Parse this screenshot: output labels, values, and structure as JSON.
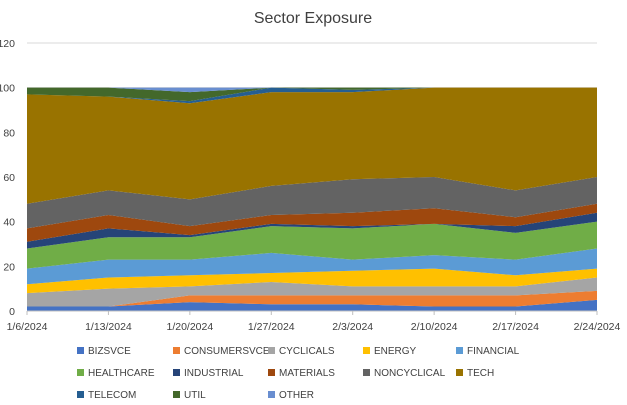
{
  "chart_data": {
    "type": "area",
    "stacked": true,
    "title": "Sector Exposure",
    "xlabel": "",
    "ylabel": "",
    "ylim": [
      0,
      120
    ],
    "yticks": [
      0,
      20,
      40,
      60,
      80,
      100,
      120
    ],
    "grid": true,
    "legend_position": "bottom",
    "x": [
      "1/6/2024",
      "1/13/2024",
      "1/20/2024",
      "1/27/2024",
      "2/3/2024",
      "2/10/2024",
      "2/17/2024",
      "2/24/2024"
    ],
    "series": [
      {
        "name": "BIZSVCE",
        "color": "#4472c4",
        "values": [
          2,
          2,
          4,
          3,
          3,
          2,
          2,
          5
        ]
      },
      {
        "name": "CONSUMERSVCE",
        "color": "#ed7d31",
        "values": [
          0,
          0,
          3,
          4,
          4,
          5,
          5,
          4
        ]
      },
      {
        "name": "CYCLICALS",
        "color": "#a5a5a5",
        "values": [
          6,
          8,
          4,
          6,
          4,
          4,
          4,
          6
        ]
      },
      {
        "name": "ENERGY",
        "color": "#ffc000",
        "values": [
          4,
          5,
          5,
          4,
          7,
          8,
          5,
          4
        ]
      },
      {
        "name": "FINANCIAL",
        "color": "#5b9bd5",
        "values": [
          7,
          8,
          7,
          9,
          5,
          6,
          7,
          9
        ]
      },
      {
        "name": "HEALTHCARE",
        "color": "#70ad47",
        "values": [
          9,
          10,
          10,
          12,
          14,
          14,
          12,
          12
        ]
      },
      {
        "name": "INDUSTRIAL",
        "color": "#264478",
        "values": [
          3,
          4,
          1,
          1,
          1,
          0,
          3,
          4
        ]
      },
      {
        "name": "MATERIALS",
        "color": "#9e480e",
        "values": [
          6,
          6,
          4,
          4,
          6,
          7,
          4,
          4
        ]
      },
      {
        "name": "NONCYCLICAL",
        "color": "#636363",
        "values": [
          11,
          11,
          12,
          13,
          15,
          14,
          12,
          12
        ]
      },
      {
        "name": "TECH",
        "color": "#997300",
        "values": [
          49,
          42,
          43,
          42,
          39,
          40,
          46,
          40
        ]
      },
      {
        "name": "TELECOM",
        "color": "#255e91",
        "values": [
          0,
          0,
          1,
          2,
          1,
          0,
          0,
          0
        ]
      },
      {
        "name": "UTIL",
        "color": "#43682b",
        "values": [
          3,
          4,
          4,
          0,
          1,
          0,
          0,
          0
        ]
      },
      {
        "name": "OTHER",
        "color": "#698ed0",
        "values": [
          0,
          0,
          2,
          0,
          0,
          0,
          0,
          0
        ]
      }
    ]
  }
}
